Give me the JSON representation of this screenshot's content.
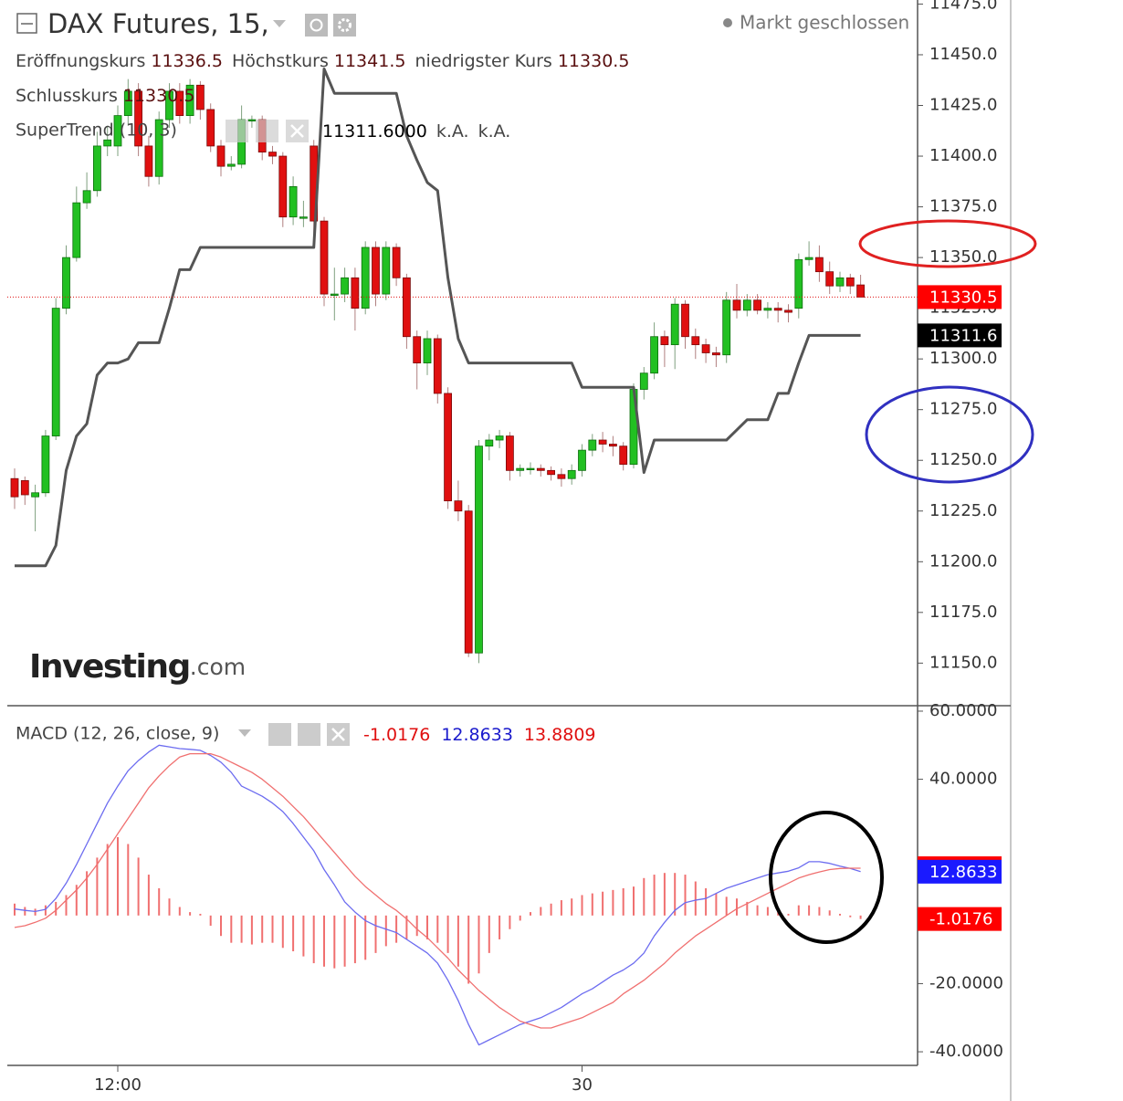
{
  "header": {
    "title": "DAX Futures, 15,",
    "status": "Markt geschlossen",
    "open_label": "Eröffnungskurs",
    "high_label": "Höchstkurs",
    "low_label": "niedrigster Kurs",
    "close_label": "Schlusskurs",
    "supertrend_value": "11311.6000",
    "na_1": "k.A.",
    "na_2": "k.A."
  },
  "logo": {
    "main": "Investing",
    "suffix": ".com"
  },
  "chart_data": [
    {
      "type": "candlestick",
      "categories": [
        null,
        null,
        null,
        null,
        null,
        null,
        null,
        null,
        null,
        null,
        "12:00",
        null,
        null,
        null,
        null,
        null,
        null,
        null,
        null,
        null,
        null,
        null,
        null,
        null,
        null,
        null,
        null,
        null,
        null,
        null,
        null,
        null,
        null,
        null,
        null,
        null,
        null,
        null,
        null,
        null,
        null,
        null,
        null,
        null,
        null,
        null,
        null,
        null,
        null,
        null,
        null,
        null,
        null,
        null,
        null,
        "30",
        null,
        null,
        null,
        null,
        null,
        null,
        null,
        null,
        null,
        null,
        null,
        null,
        null,
        null,
        null,
        null,
        null,
        null,
        null,
        null,
        null,
        null,
        null,
        null,
        null,
        null,
        null
      ],
      "open": [
        11241,
        11240,
        11232,
        11234,
        11262,
        11325,
        11350,
        11377,
        11383,
        11405,
        11405,
        11420,
        11432,
        11405,
        11390,
        11418,
        11432,
        11420,
        11435,
        11423,
        11405,
        11395,
        11396,
        11418,
        11418,
        11402,
        11400,
        11370,
        11370,
        11405,
        11368,
        11332,
        11332,
        11340,
        11325,
        11355,
        11332,
        11355,
        11340,
        11311,
        11298,
        11310,
        11283,
        11230,
        11225,
        11155,
        11257,
        11260,
        11262,
        11245,
        11246,
        11246,
        11245,
        11243,
        11241,
        11245,
        11255,
        11260,
        11258,
        11257,
        11248,
        11285,
        11293,
        11311,
        11307,
        11327,
        11311,
        11307,
        11303,
        11302,
        11329,
        11324,
        11329,
        11324,
        11325,
        11324,
        11325,
        11349,
        11350,
        11343,
        11336,
        11340,
        11336.5
      ],
      "high": [
        11246,
        11242,
        11238,
        11265,
        11330,
        11356,
        11385,
        11392,
        11412,
        11415,
        11425,
        11438,
        11436,
        11410,
        11422,
        11436,
        11436,
        11438,
        11437,
        11426,
        11408,
        11400,
        11425,
        11420,
        11420,
        11405,
        11402,
        11390,
        11378,
        11408,
        11370,
        11345,
        11345,
        11345,
        11358,
        11358,
        11358,
        11357,
        11342,
        11314,
        11314,
        11312,
        11286,
        11240,
        11228,
        11260,
        11263,
        11265,
        11264,
        11248,
        11249,
        11248,
        11247,
        11246,
        11248,
        11258,
        11263,
        11264,
        11262,
        11259,
        11288,
        11296,
        11318,
        11314,
        11330,
        11329,
        11315,
        11310,
        11306,
        11333,
        11337,
        11332,
        11332,
        11328,
        11328,
        11327,
        11352,
        11358,
        11356,
        11348,
        11343,
        11342,
        11341.5
      ],
      "low": [
        11226,
        11228,
        11215,
        11232,
        11260,
        11322,
        11348,
        11374,
        11380,
        11400,
        11400,
        11415,
        11400,
        11385,
        11386,
        11414,
        11416,
        11416,
        11418,
        11402,
        11390,
        11393,
        11394,
        11414,
        11398,
        11396,
        11365,
        11366,
        11365,
        11362,
        11326,
        11319,
        11328,
        11314,
        11322,
        11326,
        11329,
        11336,
        11305,
        11285,
        11292,
        11278,
        11226,
        11220,
        11153,
        11150,
        11250,
        11256,
        11240,
        11242,
        11243,
        11242,
        11240,
        11237,
        11238,
        11242,
        11252,
        11254,
        11252,
        11245,
        11246,
        11280,
        11290,
        11296,
        11295,
        11305,
        11300,
        11298,
        11296,
        11298,
        11320,
        11321,
        11322,
        11320,
        11318,
        11318,
        11320,
        11346,
        11338,
        11332,
        11333,
        11332,
        11330.5
      ],
      "close": [
        11232,
        11233,
        11234,
        11262,
        11325,
        11350,
        11377,
        11383,
        11405,
        11408,
        11420,
        11432,
        11405,
        11390,
        11418,
        11432,
        11420,
        11435,
        11423,
        11405,
        11395,
        11396,
        11418,
        11418,
        11402,
        11400,
        11370,
        11385,
        11370,
        11368,
        11332,
        11332,
        11340,
        11325,
        11355,
        11332,
        11355,
        11340,
        11311,
        11298,
        11310,
        11283,
        11230,
        11225,
        11155,
        11257,
        11260,
        11262,
        11245,
        11246,
        11246,
        11245,
        11243,
        11241,
        11245,
        11255,
        11260,
        11258,
        11257,
        11248,
        11285,
        11293,
        11311,
        11307,
        11327,
        11311,
        11307,
        11303,
        11302,
        11329,
        11324,
        11329,
        11324,
        11325,
        11324,
        11323,
        11349,
        11350,
        11343,
        11336,
        11340,
        11336,
        11330.5
      ],
      "up_color": "#22c022",
      "down_color": "#e01010",
      "overlay": {
        "name": "SuperTrend (10, 3)",
        "color": "#555555",
        "values": [
          11198,
          11198,
          11198,
          11198,
          11208,
          11245,
          11262,
          11268,
          11292,
          11298,
          11298,
          11300,
          11308,
          11308,
          11308,
          11325,
          11344,
          11344,
          11355,
          11355,
          11355,
          11355,
          11355,
          11355,
          11355,
          11355,
          11355,
          11355,
          11355,
          11355,
          11443,
          11431,
          11431,
          11431,
          11431,
          11431,
          11431,
          11431,
          11410,
          11398,
          11387,
          11383,
          11340,
          11310,
          11298,
          11298,
          11298,
          11298,
          11298,
          11298,
          11298,
          11298,
          11298,
          11298,
          11298,
          11286,
          11286,
          11286,
          11286,
          11286,
          11286,
          11244,
          11260,
          11260,
          11260,
          11260,
          11260,
          11260,
          11260,
          11260,
          11265,
          11270,
          11270,
          11270,
          11283,
          11283,
          11298,
          11311.6,
          11311.6,
          11311.6,
          11311.6,
          11311.6,
          11311.6
        ]
      },
      "ylim": [
        11129,
        11477
      ],
      "yticks": [
        {
          "value": 11150,
          "label": "11150.0"
        },
        {
          "value": 11175,
          "label": "11175.0"
        },
        {
          "value": 11200,
          "label": "11200.0"
        },
        {
          "value": 11225,
          "label": "11225.0"
        },
        {
          "value": 11250,
          "label": "11250.0"
        },
        {
          "value": 11275,
          "label": "11275.0"
        },
        {
          "value": 11300,
          "label": "11300.0"
        },
        {
          "value": 11325,
          "label": "11325.0"
        },
        {
          "value": 11350,
          "label": "11350.0"
        },
        {
          "value": 11375,
          "label": "11375.0"
        },
        {
          "value": 11400,
          "label": "11400.0"
        },
        {
          "value": 11425,
          "label": "11425.0"
        },
        {
          "value": 11450,
          "label": "11450.0"
        },
        {
          "value": 11475,
          "label": "11475.0"
        }
      ]
    },
    {
      "type": "macd",
      "title": "MACD (12, 26, close, 9)",
      "series": [
        {
          "color": "#6c6cf0",
          "tag_color": "#1a1aff",
          "values": [
            1.9,
            1.5,
            1.2,
            1.8,
            5,
            9.5,
            15,
            21,
            27,
            33,
            38,
            42.5,
            45.5,
            48,
            50,
            49.5,
            49,
            48.8,
            48.5,
            47,
            45,
            42,
            38,
            36.5,
            35,
            33,
            30.5,
            27,
            23,
            19,
            13.5,
            9,
            4,
            1,
            -1.5,
            -3,
            -4,
            -5,
            -7,
            -9,
            -11,
            -14,
            -19,
            -25,
            -32,
            -38,
            -36.5,
            -35,
            -33.5,
            -32,
            -31,
            -30,
            -28.5,
            -27,
            -25,
            -23,
            -21.5,
            -19.5,
            -17.5,
            -16,
            -14,
            -11,
            -6,
            -2,
            1.5,
            3.8,
            4.5,
            5,
            6.5,
            8,
            9,
            10,
            11,
            12,
            12.5,
            13,
            14,
            15.8,
            15.8,
            15.3,
            14.5,
            13.8,
            12.8633
          ]
        },
        {
          "color": "#f07070",
          "tag_color": "#ff0000",
          "values": [
            -3.5,
            -3,
            -2,
            -0.8,
            1.5,
            4.5,
            7.5,
            11,
            15,
            19.5,
            24,
            28.5,
            33,
            37.5,
            41,
            44,
            46.5,
            47.5,
            47.5,
            47.5,
            46.5,
            45,
            43.5,
            42,
            40,
            37.5,
            35,
            32,
            29,
            25.5,
            22,
            18.5,
            15,
            11.5,
            8.5,
            6,
            3.5,
            1.5,
            -1,
            -4,
            -6.5,
            -9.5,
            -12.5,
            -16,
            -19,
            -22,
            -24.5,
            -27,
            -29,
            -31,
            -32,
            -33,
            -33,
            -32,
            -31,
            -30,
            -28.5,
            -27,
            -25.5,
            -23,
            -21,
            -19,
            -16.5,
            -14,
            -11,
            -8.5,
            -6,
            -4,
            -2,
            0,
            2,
            3.5,
            5,
            6.5,
            8,
            9.5,
            11,
            12,
            12.8,
            13.5,
            13.8,
            13.9,
            13.8809
          ]
        }
      ],
      "histogram": {
        "color": "#f07070",
        "tag_color": "#ff0000",
        "values": [
          3.5,
          2.5,
          2,
          3,
          4,
          6,
          9,
          13,
          17,
          21,
          23,
          21,
          17,
          12,
          8,
          5,
          2.5,
          1,
          0.5,
          -3,
          -6,
          -8,
          -8,
          -8.5,
          -8,
          -8,
          -9.5,
          -10.5,
          -12,
          -14,
          -15,
          -15.5,
          -15,
          -14,
          -13,
          -11,
          -9,
          -8,
          -7,
          -6,
          -7,
          -8,
          -11,
          -15,
          -20,
          -17,
          -11,
          -7,
          -4,
          -1.5,
          1,
          2.5,
          3.5,
          4.5,
          5,
          6,
          6.5,
          7,
          7.5,
          8,
          8.5,
          11,
          12,
          12.5,
          12.5,
          12,
          10,
          8,
          6.5,
          5.5,
          5,
          4,
          3,
          2.5,
          1.5,
          0.5,
          3,
          3,
          2.5,
          1.5,
          0.5,
          -0.5,
          -1.0176
        ]
      },
      "ylim": [
        -44,
        61.6
      ],
      "yticks": [
        {
          "value": 60,
          "label": "60.0000"
        },
        {
          "value": 40,
          "label": "40.0000"
        },
        {
          "value": -20,
          "label": "-20.0000"
        },
        {
          "value": -40,
          "label": "-40.0000"
        }
      ]
    }
  ]
}
